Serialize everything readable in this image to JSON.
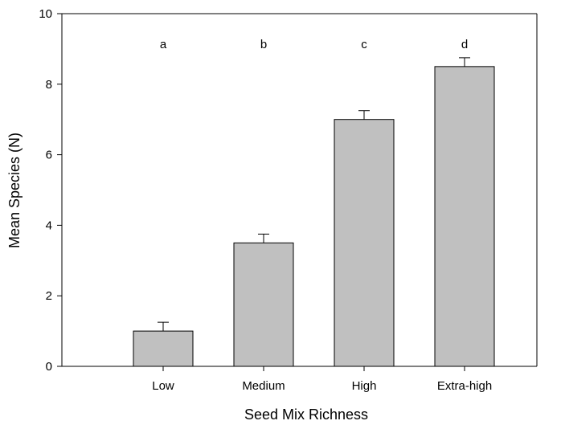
{
  "chart_data": {
    "type": "bar",
    "title": "",
    "xlabel": "Seed Mix Richness",
    "ylabel": "Mean Species (N)",
    "categories": [
      "Low",
      "Medium",
      "High",
      "Extra-high"
    ],
    "values": [
      1.0,
      3.5,
      7.0,
      8.5
    ],
    "error_upper": [
      0.25,
      0.25,
      0.25,
      0.25
    ],
    "significance_letters": [
      "a",
      "b",
      "c",
      "d"
    ],
    "ylim": [
      0,
      10
    ],
    "yticks": [
      "0",
      "2",
      "4",
      "6",
      "8",
      "10"
    ],
    "grid": false,
    "bar_color": "#c0c0c0",
    "edge_color": "#000000"
  }
}
